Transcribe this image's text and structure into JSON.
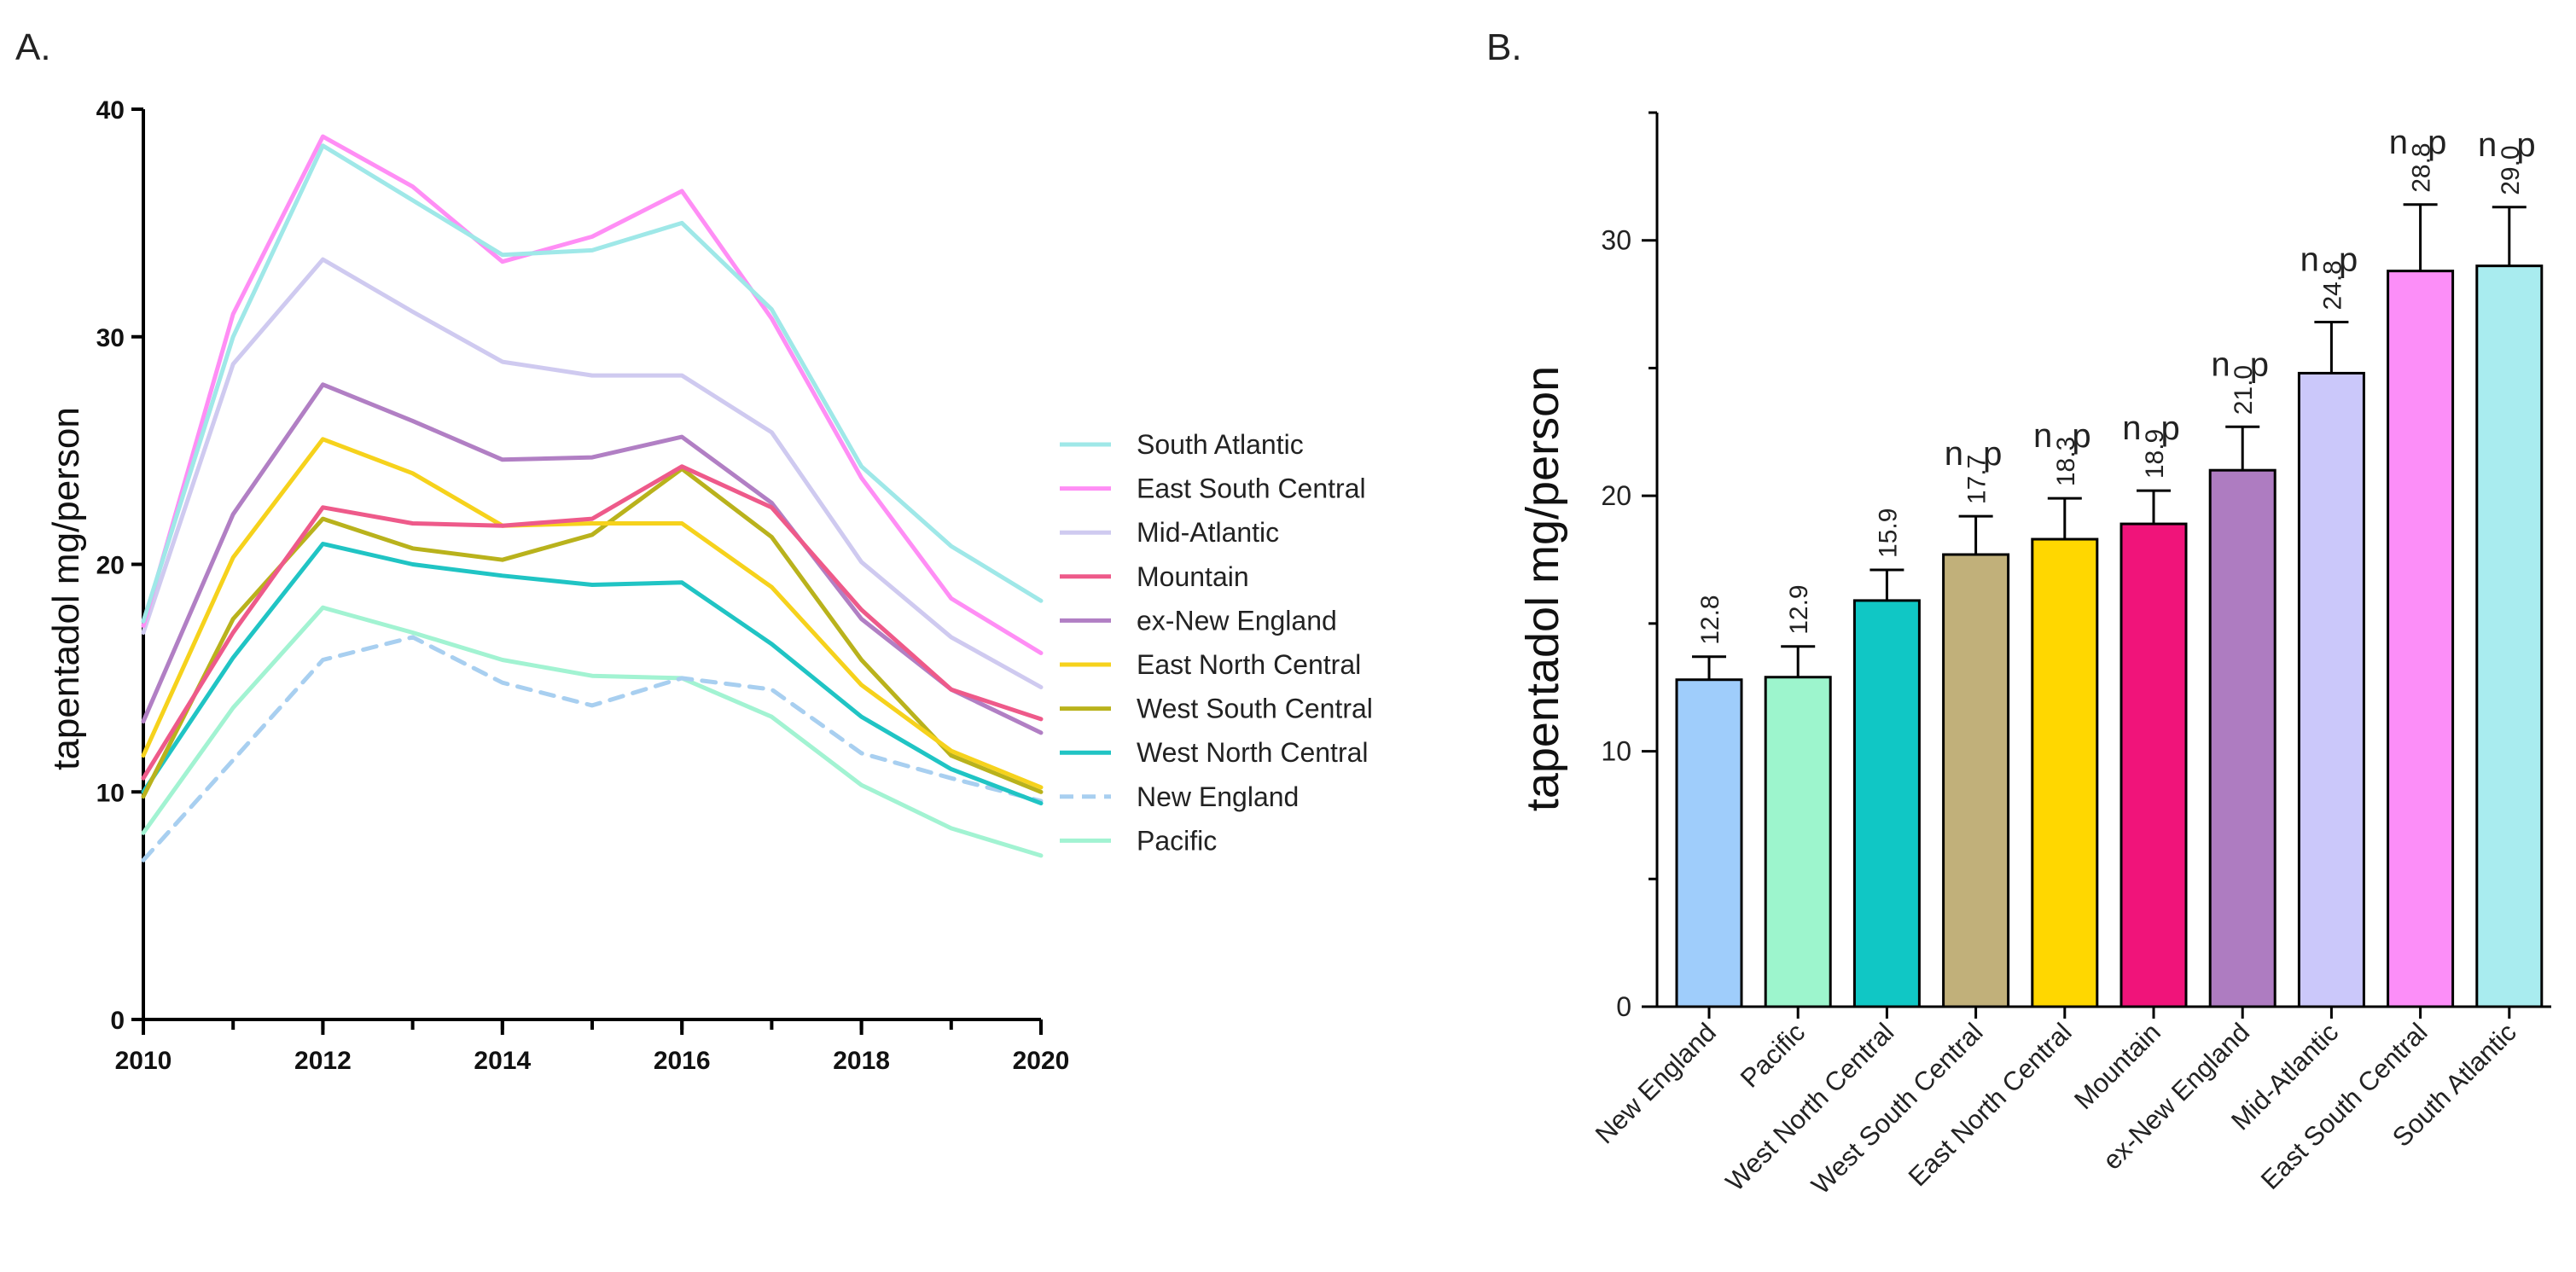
{
  "chart_data": [
    {
      "type": "line",
      "panel_label": "A.",
      "title": "",
      "xlabel": "",
      "ylabel": "tapentadol mg/person",
      "x": [
        2010,
        2011,
        2012,
        2013,
        2014,
        2015,
        2016,
        2017,
        2018,
        2019,
        2020
      ],
      "xlim": [
        2010,
        2020
      ],
      "xticks": [
        "2010",
        "2012",
        "2014",
        "2016",
        "2018",
        "2020"
      ],
      "ylim": [
        0,
        40
      ],
      "yticks": [
        "0",
        "10",
        "20",
        "30",
        "40"
      ],
      "grid": false,
      "legend_position": "right",
      "series": [
        {
          "name": "South Atlantic",
          "color": "#9fe8e8",
          "dashed": false,
          "values": [
            17.5,
            30.0,
            38.4,
            36.0,
            33.6,
            33.8,
            35.0,
            31.2,
            24.3,
            20.8,
            18.4
          ]
        },
        {
          "name": "East South Central",
          "color": "#ff8ef5",
          "dashed": false,
          "values": [
            17.3,
            31.0,
            38.8,
            36.6,
            33.3,
            34.4,
            36.4,
            30.8,
            23.8,
            18.5,
            16.1
          ]
        },
        {
          "name": "Mid-Atlantic",
          "color": "#cfcaf0",
          "dashed": false,
          "values": [
            17.0,
            28.8,
            33.4,
            31.1,
            28.9,
            28.3,
            28.3,
            25.8,
            20.1,
            16.8,
            14.6
          ]
        },
        {
          "name": "Mountain",
          "color": "#ee5a8a",
          "dashed": false,
          "values": [
            10.6,
            17.0,
            22.5,
            21.8,
            21.7,
            22.0,
            24.3,
            22.5,
            18.0,
            14.5,
            13.2
          ]
        },
        {
          "name": "ex-New England",
          "color": "#b17fc4",
          "dashed": false,
          "values": [
            13.1,
            22.2,
            27.9,
            26.3,
            24.6,
            24.7,
            25.6,
            22.7,
            17.6,
            14.5,
            12.6
          ]
        },
        {
          "name": "East North Central",
          "color": "#f6d21c",
          "dashed": false,
          "values": [
            11.6,
            20.3,
            25.5,
            24.0,
            21.7,
            21.8,
            21.8,
            19.0,
            14.7,
            11.8,
            10.2
          ]
        },
        {
          "name": "West South Central",
          "color": "#b9b21c",
          "dashed": false,
          "values": [
            9.8,
            17.6,
            22.0,
            20.7,
            20.2,
            21.3,
            24.2,
            21.2,
            15.8,
            11.6,
            10.0
          ]
        },
        {
          "name": "West North Central",
          "color": "#20c4c4",
          "dashed": false,
          "values": [
            10.0,
            15.9,
            20.9,
            20.0,
            19.5,
            19.1,
            19.2,
            16.5,
            13.3,
            11.0,
            9.5
          ]
        },
        {
          "name": "New England",
          "color": "#a8cff0",
          "dashed": true,
          "values": [
            7.0,
            11.4,
            15.8,
            16.8,
            14.8,
            13.8,
            15.0,
            14.5,
            11.7,
            10.6,
            9.6
          ]
        },
        {
          "name": "Pacific",
          "color": "#a2f3d2",
          "dashed": false,
          "values": [
            8.2,
            13.7,
            18.1,
            17.0,
            15.8,
            15.1,
            15.0,
            13.3,
            10.3,
            8.4,
            7.2
          ]
        }
      ]
    },
    {
      "type": "bar",
      "panel_label": "B.",
      "title": "",
      "xlabel": "",
      "ylabel": "tapentadol mg/person",
      "ylim": [
        0,
        35
      ],
      "yticks": [
        "0",
        "10",
        "20",
        "30"
      ],
      "grid": false,
      "categories": [
        "New England",
        "Pacific",
        "West North Central",
        "West South Central",
        "East North Central",
        "Mountain",
        "ex-New England",
        "Mid-Atlantic",
        "East South Central",
        "South Atlantic"
      ],
      "values": [
        12.8,
        12.9,
        15.9,
        17.7,
        18.3,
        18.9,
        21.0,
        24.8,
        28.8,
        29.0
      ],
      "value_labels": [
        "12.8",
        "12.9",
        "15.9",
        "17.7",
        "18.3",
        "18.9",
        "21.0",
        "24.8",
        "28.8",
        "29.0"
      ],
      "error_upper": [
        0.9,
        1.2,
        1.2,
        1.5,
        1.6,
        1.3,
        1.7,
        2.0,
        2.6,
        2.3
      ],
      "annotations": [
        "",
        "",
        "",
        "n p",
        "n p",
        "n p",
        "n p",
        "n p",
        "n p",
        "n p"
      ],
      "colors": [
        "#9fcdfb",
        "#9df5cd",
        "#10c7c5",
        "#c1b07a",
        "#ffd700",
        "#f0147a",
        "#ae7cc1",
        "#cbc8fa",
        "#fc8ef8",
        "#a9ecef"
      ]
    }
  ]
}
